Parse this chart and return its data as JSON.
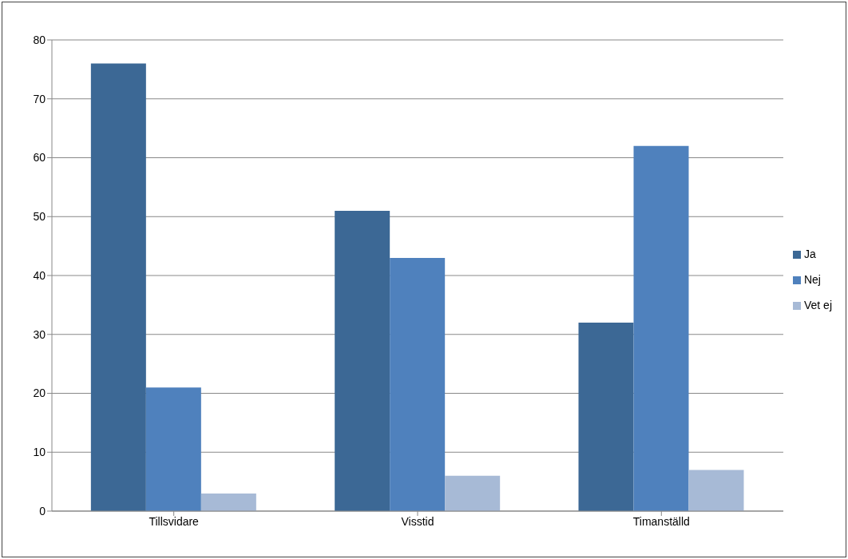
{
  "chart_data": {
    "type": "bar",
    "categories": [
      "Tillsvidare",
      "Visstid",
      "Timanställd"
    ],
    "series": [
      {
        "name": "Ja",
        "color": "#3c6895",
        "values": [
          76,
          51,
          32
        ]
      },
      {
        "name": "Nej",
        "color": "#4f81bd",
        "values": [
          21,
          43,
          62
        ]
      },
      {
        "name": "Vet ej",
        "color": "#a7bad6",
        "values": [
          3,
          6,
          7
        ]
      }
    ],
    "ylim": [
      0,
      80
    ],
    "yticks": [
      0,
      10,
      20,
      30,
      40,
      50,
      60,
      70,
      80
    ],
    "grid": "y",
    "legend": "right"
  }
}
